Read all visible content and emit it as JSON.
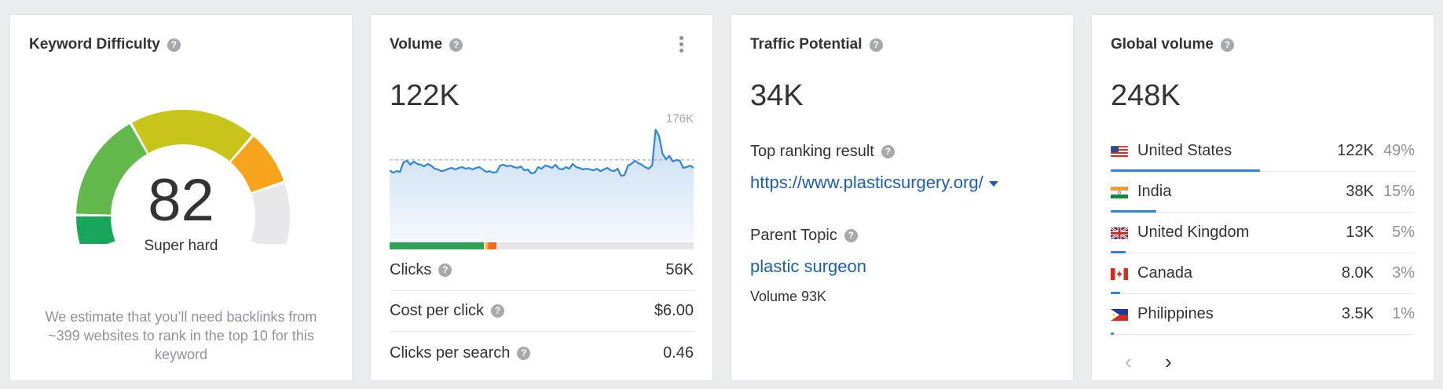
{
  "keyword_difficulty": {
    "title": "Keyword Difficulty",
    "score": "82",
    "label": "Super hard",
    "description": "We estimate that you’ll need backlinks from ~399 websites to rank in the top 10 for this keyword",
    "score_fraction": 0.82,
    "colors": {
      "green_dark": "#1aa65a",
      "green": "#62b84a",
      "yellow": "#c9c41a",
      "orange": "#f7a41c",
      "empty": "#e8e8ea"
    }
  },
  "volume": {
    "title": "Volume",
    "value": "122K",
    "chart_max_label": "176K",
    "chart_data": {
      "type": "area",
      "y_max": 176,
      "average": 122,
      "values": [
        109,
        106,
        108,
        107,
        119,
        121,
        116,
        120,
        117,
        116,
        114,
        117,
        115,
        111,
        110,
        108,
        109,
        111,
        112,
        110,
        112,
        113,
        111,
        112,
        110,
        112,
        113,
        110,
        107,
        108,
        106,
        107,
        115,
        116,
        114,
        115,
        113,
        112,
        114,
        109,
        110,
        105,
        106,
        113,
        111,
        115,
        114,
        112,
        116,
        111,
        110,
        113,
        111,
        117,
        113,
        112,
        110,
        111,
        110,
        109,
        111,
        108,
        110,
        112,
        109,
        108,
        111,
        102,
        103,
        115,
        117,
        121,
        118,
        116,
        113,
        111,
        115,
        160,
        152,
        130,
        123,
        127,
        120,
        122,
        121,
        112,
        113,
        115,
        112
      ]
    },
    "click_bar": {
      "organic_fraction": 0.31,
      "paid_fraction": 0.035,
      "colors": {
        "organic": "#2fa257",
        "paid": "#ef6a22",
        "paid_accent": "#f7b529"
      }
    },
    "metrics": [
      {
        "label": "Clicks",
        "value": "56K",
        "has_help": true
      },
      {
        "label": "Cost per click",
        "value": "$6.00",
        "has_help": true
      },
      {
        "label": "Clicks per search",
        "value": "0.46",
        "has_help": true
      }
    ]
  },
  "traffic_potential": {
    "title": "Traffic Potential",
    "value": "34K",
    "top_ranking_label": "Top ranking result",
    "top_ranking_url": "https://www.plasticsurgery.org/",
    "parent_topic_label": "Parent Topic",
    "parent_topic": "plastic surgeon",
    "parent_topic_volume": "Volume 93K"
  },
  "global_volume": {
    "title": "Global volume",
    "value": "248K",
    "countries": [
      {
        "name": "United States",
        "volume": "122K",
        "percent": "49%",
        "share": 0.49,
        "flag": "us-flag-icon"
      },
      {
        "name": "India",
        "volume": "38K",
        "percent": "15%",
        "share": 0.15,
        "flag": "india-flag-icon"
      },
      {
        "name": "United Kingdom",
        "volume": "13K",
        "percent": "5%",
        "share": 0.05,
        "flag": "uk-flag-icon"
      },
      {
        "name": "Canada",
        "volume": "8.0K",
        "percent": "3%",
        "share": 0.03,
        "flag": "canada-flag-icon"
      },
      {
        "name": "Philippines",
        "volume": "3.5K",
        "percent": "1%",
        "share": 0.01,
        "flag": "philippines-flag-icon"
      }
    ],
    "prev_icon": "chevron-left-icon",
    "next_icon": "chevron-right-icon"
  }
}
